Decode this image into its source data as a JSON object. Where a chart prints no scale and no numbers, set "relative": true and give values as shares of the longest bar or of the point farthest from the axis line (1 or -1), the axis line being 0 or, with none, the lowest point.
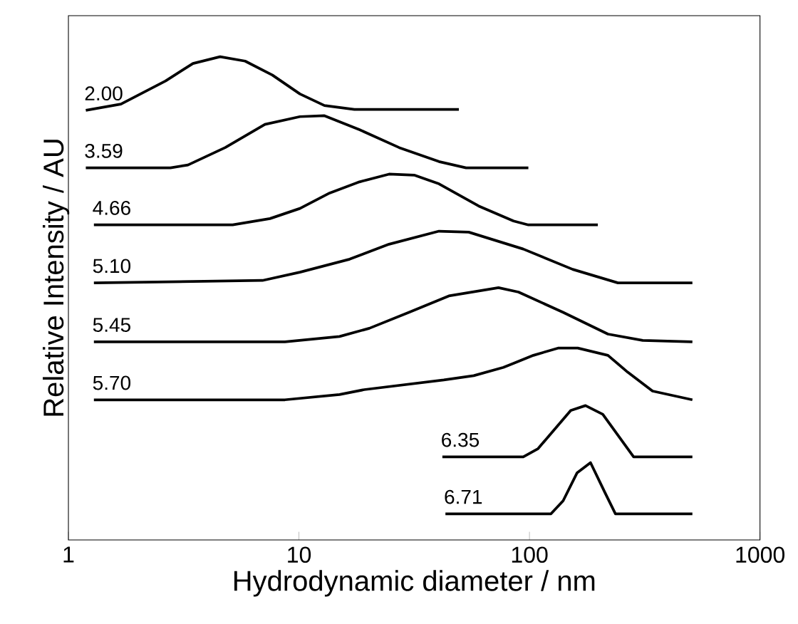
{
  "chart_data": {
    "type": "line",
    "relative": true,
    "log": "x",
    "xlabel": "Hydrodynamic diameter / nm",
    "ylabel": "Relative Intensity / AU",
    "xlim": [
      1,
      1000
    ],
    "xticks": [
      1,
      10,
      100,
      1000
    ],
    "legend": false,
    "grid": false,
    "marker": "none",
    "line_style": "solid",
    "series": [
      {
        "name": "2.00",
        "color": "#000000",
        "x": [
          1.19,
          1.69,
          2.64,
          3.47,
          4.55,
          5.84,
          7.67,
          10.1,
          12.9,
          17.4,
          49.4
        ],
        "values": [
          0.889,
          0.902,
          0.95,
          0.986,
          1.0,
          0.991,
          0.962,
          0.923,
          0.899,
          0.891,
          0.891
        ]
      },
      {
        "name": "3.59",
        "color": "#000000",
        "x": [
          1.19,
          2.77,
          3.3,
          4.79,
          7.12,
          10.1,
          12.9,
          18.3,
          27.2,
          40.5,
          53.1,
          98.9
        ],
        "values": [
          0.77,
          0.77,
          0.776,
          0.812,
          0.86,
          0.876,
          0.878,
          0.849,
          0.812,
          0.783,
          0.77,
          0.77
        ]
      },
      {
        "name": "4.66",
        "color": "#000000",
        "x": [
          1.29,
          5.16,
          7.49,
          10.1,
          13.6,
          18.3,
          24.6,
          31.6,
          40.5,
          60.2,
          85.3,
          98.9,
          198
        ],
        "values": [
          0.652,
          0.652,
          0.665,
          0.686,
          0.718,
          0.741,
          0.757,
          0.755,
          0.737,
          0.691,
          0.66,
          0.652,
          0.652
        ]
      },
      {
        "name": "5.10",
        "color": "#000000",
        "x": [
          1.29,
          6.95,
          10.1,
          16.6,
          24.6,
          40.5,
          54.5,
          94.0,
          154,
          242,
          509
        ],
        "values": [
          0.532,
          0.537,
          0.554,
          0.581,
          0.612,
          0.639,
          0.637,
          0.602,
          0.56,
          0.532,
          0.532
        ]
      },
      {
        "name": "5.45",
        "color": "#000000",
        "x": [
          1.29,
          8.69,
          15.0,
          20.2,
          30.0,
          44.7,
          73.4,
          89.6,
          140,
          219,
          310,
          509
        ],
        "values": [
          0.41,
          0.41,
          0.421,
          0.438,
          0.471,
          0.505,
          0.522,
          0.513,
          0.471,
          0.426,
          0.413,
          0.41
        ]
      },
      {
        "name": "5.70",
        "color": "#000000",
        "x": [
          1.29,
          8.69,
          15.0,
          19.2,
          42.5,
          57.3,
          77.1,
          104,
          133,
          162,
          219,
          267,
          342,
          509
        ],
        "values": [
          0.29,
          0.29,
          0.301,
          0.311,
          0.331,
          0.34,
          0.357,
          0.382,
          0.397,
          0.397,
          0.382,
          0.347,
          0.308,
          0.29
        ]
      },
      {
        "name": "6.35",
        "color": "#000000",
        "x": [
          41.9,
          94.0,
          109,
          151,
          175,
          208,
          283,
          509
        ],
        "values": [
          0.172,
          0.172,
          0.189,
          0.268,
          0.278,
          0.26,
          0.172,
          0.172
        ]
      },
      {
        "name": "6.71",
        "color": "#000000",
        "x": [
          43.2,
          124,
          140,
          161,
          184,
          213,
          236,
          509
        ],
        "values": [
          0.054,
          0.054,
          0.081,
          0.139,
          0.16,
          0.097,
          0.054,
          0.054
        ]
      }
    ]
  }
}
